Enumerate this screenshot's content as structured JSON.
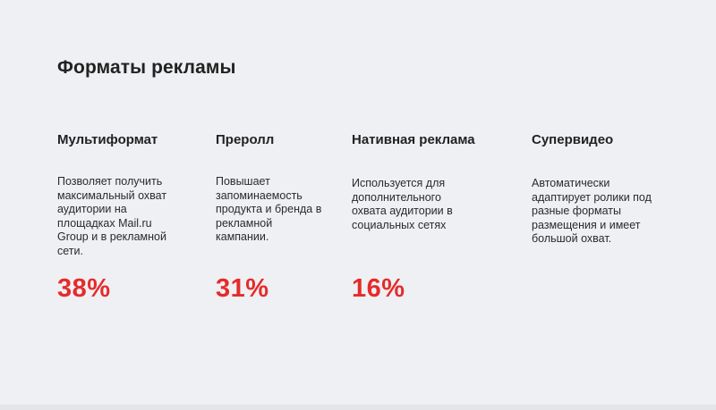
{
  "slide": {
    "title": "Форматы рекламы",
    "columns": [
      {
        "heading": "Мультиформат",
        "text": "Позволяет получить максимальный охват аудитории на площадках Mail.ru Group и в рекламной сети.",
        "stat": "38%"
      },
      {
        "heading": "Преролл",
        "text": "Повышает запоминаемость продукта и бренда в рекламной кампании.",
        "stat": "31%"
      },
      {
        "heading": "Нативная реклама",
        "text": "Используется для дополнительного охвата аудитории в социальных сетях",
        "stat": "16%"
      },
      {
        "heading": "Супервидео",
        "text": "Автоматически адаптирует ролики под разные форматы размещения и имеет большой охват.",
        "stat": ""
      }
    ]
  },
  "colors": {
    "background": "#eef0f3",
    "accent": "#e52b2b",
    "text": "#222222"
  }
}
